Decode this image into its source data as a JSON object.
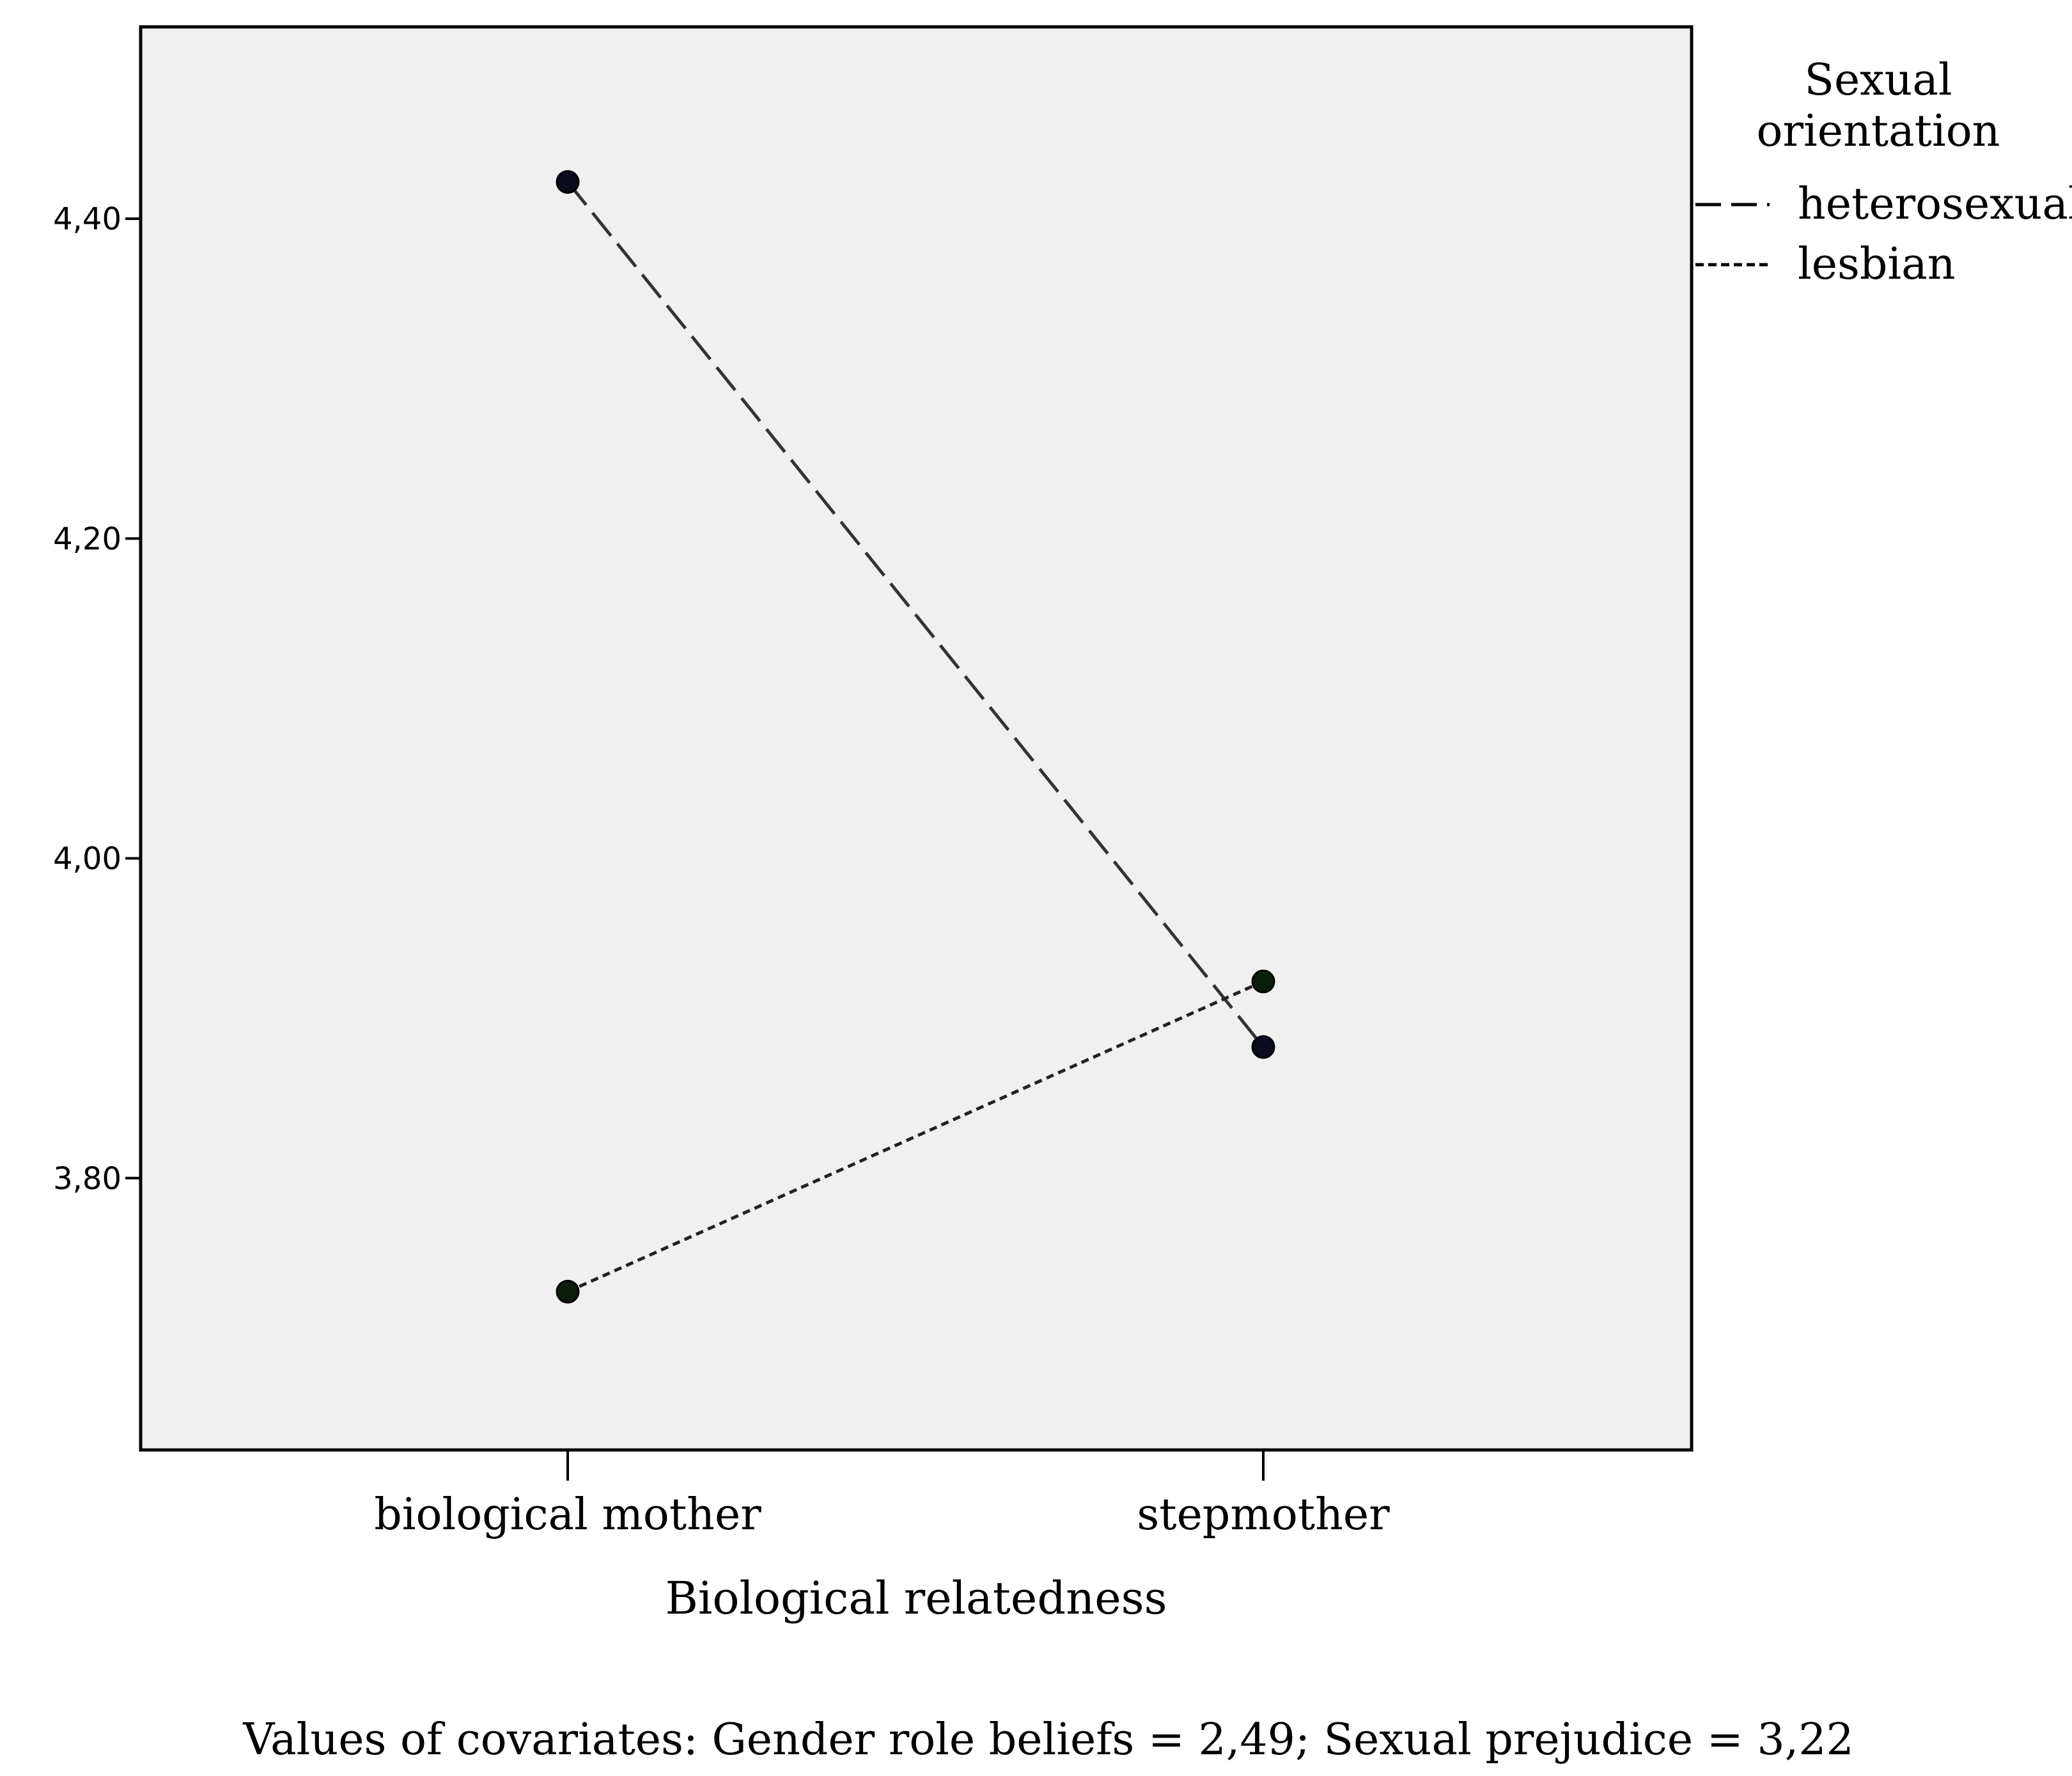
{
  "chart_data": {
    "type": "line",
    "xlabel": "Biological relatedness",
    "ylabel": "",
    "categories": [
      "biological mother",
      "stepmother"
    ],
    "ylim": [
      3.63,
      4.52
    ],
    "yticks": [
      {
        "value": 3.8,
        "label": "3,80"
      },
      {
        "value": 4.0,
        "label": "4,00"
      },
      {
        "value": 4.2,
        "label": "4,20"
      },
      {
        "value": 4.4,
        "label": "4,40"
      }
    ],
    "legend": {
      "title": "Sexual orientation",
      "title_lines": [
        "Sexual",
        "orientation"
      ],
      "placement": "right-top"
    },
    "series": [
      {
        "name": "heterosexual",
        "values": [
          4.423,
          3.882
        ],
        "line_style": "long-dash",
        "marker_color": "#0b0b1e",
        "line_color": "#333333"
      },
      {
        "name": "lesbian",
        "values": [
          3.729,
          3.923
        ],
        "line_style": "short-dash",
        "marker_color": "#0b1e0b",
        "line_color": "#222222"
      }
    ],
    "grid": false,
    "footnote": "Values of covariates: Gender role beliefs = 2,49; Sexual prejudice = 3,22",
    "colors": {
      "plot_background": "#f0f0f0",
      "axis": "#000000"
    }
  }
}
